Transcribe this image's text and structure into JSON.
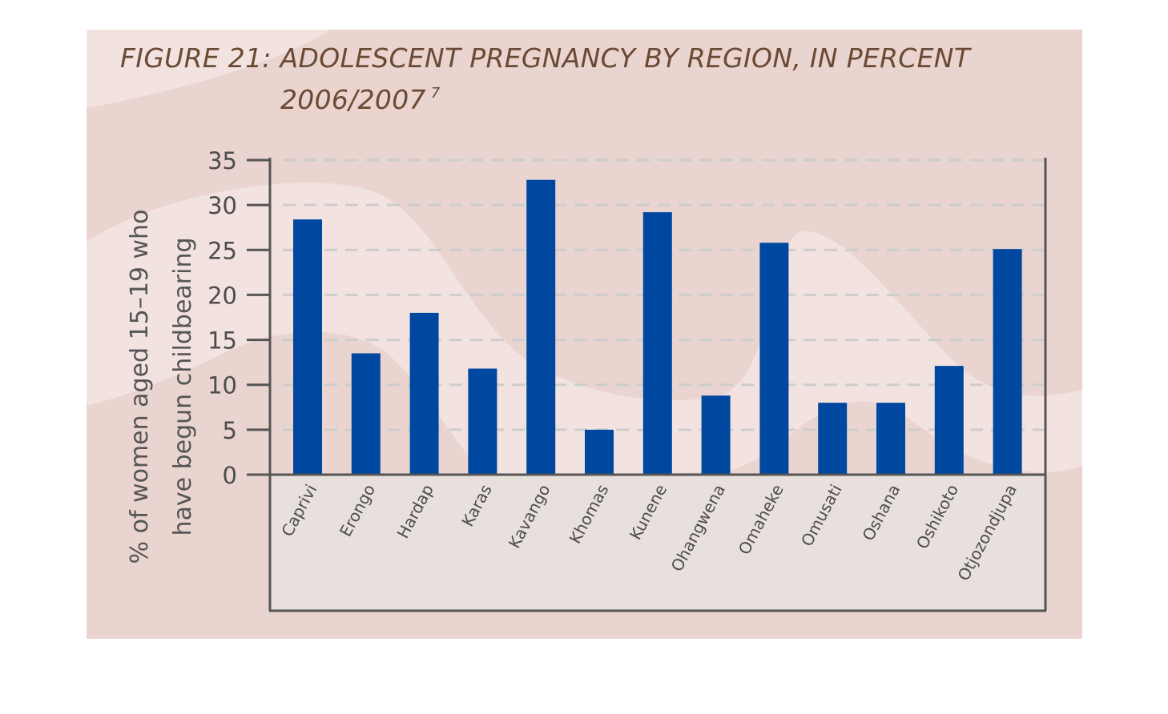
{
  "colors": {
    "panel": "#e9d4cf",
    "wave_light": "#f2e3e0",
    "category_box": "#e8e0dc",
    "bar": "#0047a0",
    "title": "#6b4a35",
    "axis": "#555555",
    "grid": "#cdcdcd"
  },
  "chart_data": {
    "type": "bar",
    "title": "FIGURE 21: ADOLESCENT PREGNANCY BY REGION, IN PERCENT",
    "subtitle": "2006/2007",
    "subtitle_note": "7",
    "xlabel": "",
    "ylabel": "% of women aged 15–19 who have begun childbearing",
    "ylabel_lines": [
      "% of women aged 15–19 who",
      "have begun childbearing"
    ],
    "categories": [
      "Caprivi",
      "Erongo",
      "Hardap",
      "Karas",
      "Kavango",
      "Khomas",
      "Kunene",
      "Ohangwena",
      "Omaheke",
      "Omusati",
      "Oshana",
      "Oshikoto",
      "Otjozondjupa"
    ],
    "values": [
      28.4,
      13.5,
      18.0,
      11.8,
      32.8,
      5.0,
      29.2,
      8.8,
      25.8,
      8.0,
      8.0,
      12.1,
      25.1
    ],
    "yticks": [
      0,
      5,
      10,
      15,
      20,
      25,
      30,
      35
    ],
    "ylim": [
      0,
      35
    ],
    "grid": true,
    "legend": "none"
  }
}
